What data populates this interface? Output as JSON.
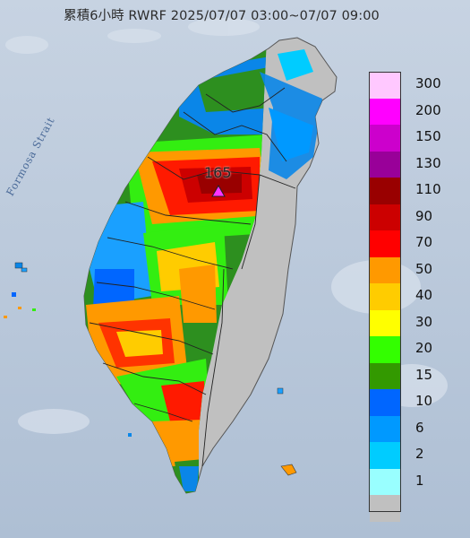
{
  "title": "累積6小時 RWRF 2025/07/07 03:00~07/07 09:00",
  "strait_label": "Formosa Strait",
  "peak_value": "165",
  "legend": [
    {
      "value": "300",
      "color": "#ffc8ff"
    },
    {
      "value": "200",
      "color": "#ff00ff"
    },
    {
      "value": "150",
      "color": "#cc00cc"
    },
    {
      "value": "130",
      "color": "#990099"
    },
    {
      "value": "110",
      "color": "#990000"
    },
    {
      "value": "90",
      "color": "#cc0000"
    },
    {
      "value": "70",
      "color": "#ff0000"
    },
    {
      "value": "50",
      "color": "#ff9900"
    },
    {
      "value": "40",
      "color": "#ffcc00"
    },
    {
      "value": "30",
      "color": "#ffff00"
    },
    {
      "value": "20",
      "color": "#33ff00"
    },
    {
      "value": "15",
      "color": "#339900"
    },
    {
      "value": "10",
      "color": "#0066ff"
    },
    {
      "value": "6",
      "color": "#0099ff"
    },
    {
      "value": "2",
      "color": "#00ccff"
    },
    {
      "value": "1",
      "color": "#99ffff"
    },
    {
      "value": "",
      "color": "#c0c0c0"
    }
  ]
}
